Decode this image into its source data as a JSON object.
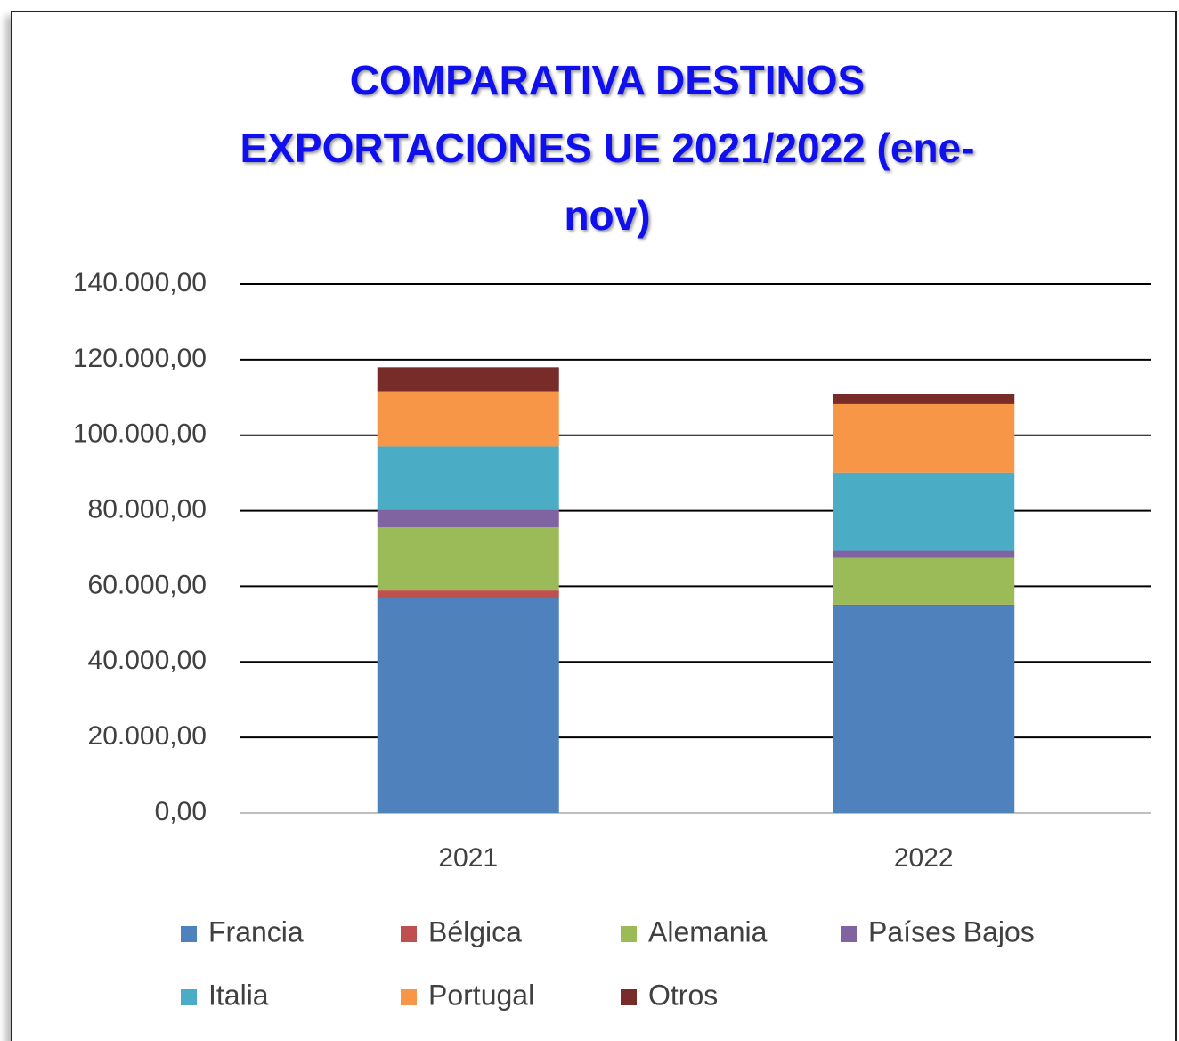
{
  "chart_data": {
    "type": "stacked_bar",
    "title": "COMPARATIVA DESTINOS EXPORTACIONES UE 2021/2022 (ene-nov)",
    "categories": [
      "2021",
      "2022"
    ],
    "series": [
      {
        "name": "Francia",
        "color": "#4f81bd",
        "values": [
          57000,
          54700
        ]
      },
      {
        "name": "Bélgica",
        "color": "#c0504d",
        "values": [
          1900,
          500
        ]
      },
      {
        "name": "Alemania",
        "color": "#9bbb59",
        "values": [
          16700,
          12300
        ]
      },
      {
        "name": "Países Bajos",
        "color": "#8064a2",
        "values": [
          4700,
          1900
        ]
      },
      {
        "name": "Italia",
        "color": "#4bacc6",
        "values": [
          16700,
          20700
        ]
      },
      {
        "name": "Portugal",
        "color": "#f79646",
        "values": [
          14600,
          18100
        ]
      },
      {
        "name": "Otros",
        "color": "#772c2a",
        "values": [
          6400,
          2600
        ]
      }
    ],
    "ylim": [
      0,
      140000
    ],
    "yticks": [
      {
        "value": 0,
        "label": "0,00"
      },
      {
        "value": 20000,
        "label": "20.000,00"
      },
      {
        "value": 40000,
        "label": "40.000,00"
      },
      {
        "value": 60000,
        "label": "60.000,00"
      },
      {
        "value": 80000,
        "label": "80.000,00"
      },
      {
        "value": 100000,
        "label": "100.000,00"
      },
      {
        "value": 120000,
        "label": "120.000,00"
      },
      {
        "value": 140000,
        "label": "140.000,00"
      }
    ],
    "grid": true
  }
}
